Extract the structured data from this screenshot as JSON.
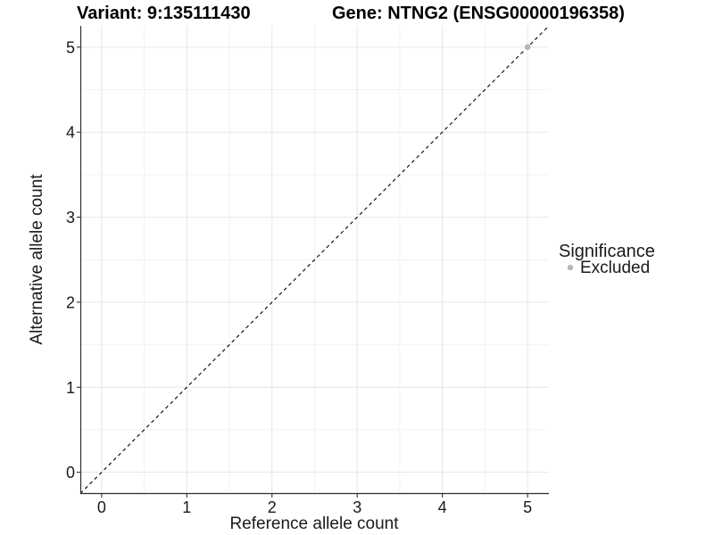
{
  "chart_data": {
    "type": "scatter",
    "title_left": "Variant: 9:135111430",
    "title_right": "Gene: NTNG2 (ENSG00000196358)",
    "xlabel": "Reference allele count",
    "ylabel": "Alternative allele count",
    "xlim": [
      -0.25,
      5.25
    ],
    "ylim": [
      -0.25,
      5.25
    ],
    "x_major_ticks": [
      0,
      1,
      2,
      3,
      4,
      5
    ],
    "y_major_ticks": [
      0,
      1,
      2,
      3,
      4,
      5
    ],
    "x_minor_ticks": [
      0.5,
      1.5,
      2.5,
      3.5,
      4.5
    ],
    "y_minor_ticks": [
      0.5,
      1.5,
      2.5,
      3.5,
      4.5
    ],
    "grid": "major+minor",
    "legend_position": "right",
    "reference_line": {
      "type": "identity",
      "slope": 1,
      "intercept": 0,
      "style": "dashed",
      "color": "#000000"
    },
    "series": [
      {
        "name": "Excluded",
        "color": "#b5b5b5",
        "points": [
          {
            "x": 5,
            "y": 5
          }
        ]
      }
    ],
    "legend": {
      "title": "Significance",
      "items": [
        {
          "label": "Excluded",
          "color": "#b5b5b5"
        }
      ]
    },
    "colors": {
      "background": "#ffffff",
      "panel_background": "#ffffff",
      "axis_line": "#2f2f2f",
      "tick_label": "#1a1a1a",
      "grid_major": "#e6e6e6",
      "grid_minor": "#f2f2f2",
      "point": "#b5b5b5",
      "dashed_line": "#000000"
    }
  }
}
